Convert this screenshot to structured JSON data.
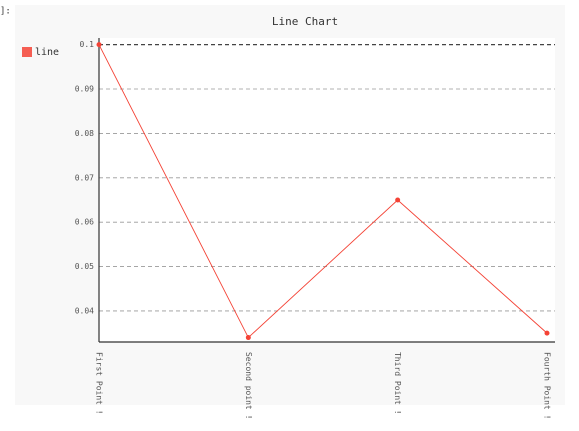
{
  "prompt": "]:",
  "chart_data": {
    "type": "line",
    "title": "Line Chart",
    "categories": [
      "First Point !",
      "Second point !",
      "Third Point !",
      "Fourth Point !"
    ],
    "series": [
      {
        "name": "line",
        "color": "#f44336",
        "values": [
          0.1,
          0.034,
          0.065,
          0.035
        ]
      }
    ],
    "ylim": [
      0.033,
      0.1015
    ],
    "yticks": [
      0.04,
      0.05,
      0.06,
      0.07,
      0.08,
      0.09,
      0.1
    ],
    "grid": true,
    "legend": "left"
  }
}
